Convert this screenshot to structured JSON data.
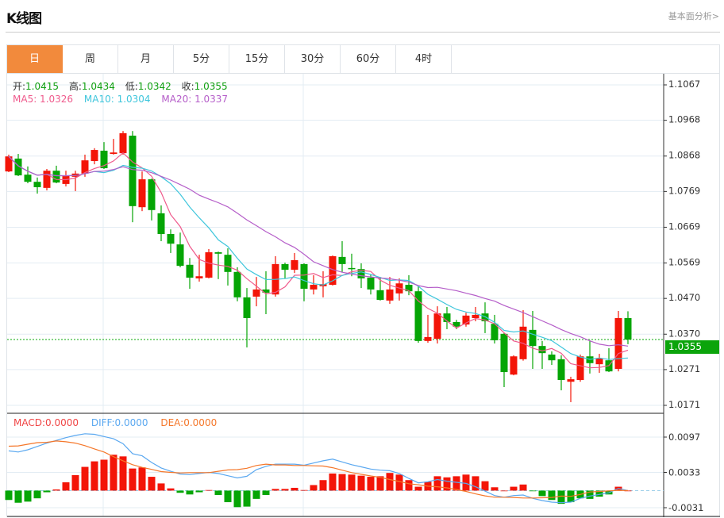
{
  "header": {
    "title": "K线图",
    "more_link": "基本面分析>"
  },
  "tabs": [
    {
      "label": "日",
      "active": true
    },
    {
      "label": "周"
    },
    {
      "label": "月"
    },
    {
      "label": "5分"
    },
    {
      "label": "15分"
    },
    {
      "label": "30分"
    },
    {
      "label": "60分"
    },
    {
      "label": "4时"
    }
  ],
  "ohlc": {
    "open_label": "开:",
    "open": "1.0415",
    "high_label": "高:",
    "high": "1.0434",
    "low_label": "低:",
    "low": "1.0342",
    "close_label": "收:",
    "close": "1.0355"
  },
  "ma": {
    "ma5": "MA5: 1.0326",
    "ma10": "MA10: 1.0304",
    "ma20": "MA20: 1.0337"
  },
  "macd_legend": {
    "macd": "MACD:0.0000",
    "diff": "DIFF:0.0000",
    "dea": "DEA:0.0000"
  },
  "current_price": "1.0355",
  "colors": {
    "up": "#f31508",
    "down": "#05a505",
    "ma5": "#ef5a8c",
    "ma10": "#3fc6dc",
    "ma20": "#b55ec9",
    "diff": "#5aa8f0",
    "dea": "#f5772a",
    "tab_active": "#f28a3c"
  },
  "chart_data": [
    {
      "type": "candlestick",
      "price_axis": {
        "ticks": [
          "1.1067",
          "1.0968",
          "1.0868",
          "1.0769",
          "1.0669",
          "1.0569",
          "1.0470",
          "1.0370",
          "1.0271",
          "1.0171"
        ],
        "range": [
          1.0171,
          1.1067
        ]
      },
      "candles": [
        [
          1.0825,
          1.0872,
          1.0823,
          1.0867
        ],
        [
          1.0861,
          1.0874,
          1.0812,
          1.0814
        ],
        [
          1.0816,
          1.0839,
          1.0792,
          1.0796
        ],
        [
          1.0796,
          1.0808,
          1.0763,
          1.0781
        ],
        [
          1.0779,
          1.0832,
          1.0772,
          1.0827
        ],
        [
          1.0827,
          1.0841,
          1.0792,
          1.0794
        ],
        [
          1.079,
          1.0827,
          1.0783,
          1.0812
        ],
        [
          1.081,
          1.0827,
          1.077,
          1.0819
        ],
        [
          1.0819,
          1.0872,
          1.081,
          1.0856
        ],
        [
          1.0854,
          1.089,
          1.0845,
          1.0885
        ],
        [
          1.0883,
          1.0907,
          1.0832,
          1.0834
        ],
        [
          1.0874,
          1.0916,
          1.0872,
          1.0878
        ],
        [
          1.0876,
          1.0938,
          1.0872,
          1.0932
        ],
        [
          1.0925,
          1.0938,
          1.0683,
          1.0728
        ],
        [
          1.0725,
          1.0825,
          1.0714,
          1.0803
        ],
        [
          1.0803,
          1.0805,
          1.0688,
          1.0717
        ],
        [
          1.0708,
          1.073,
          1.063,
          1.065
        ],
        [
          1.065,
          1.0663,
          1.0597,
          1.0623
        ],
        [
          1.0621,
          1.0654,
          1.0557,
          1.0561
        ],
        [
          1.0564,
          1.0583,
          1.0497,
          1.0528
        ],
        [
          1.0526,
          1.0592,
          1.0517,
          1.0532
        ],
        [
          1.0528,
          1.0608,
          1.0526,
          1.0599
        ],
        [
          1.0599,
          1.0601,
          1.0524,
          1.0595
        ],
        [
          1.0592,
          1.061,
          1.0506,
          1.0544
        ],
        [
          1.0544,
          1.0557,
          1.0462,
          1.0473
        ],
        [
          1.0473,
          1.0499,
          1.0333,
          1.0415
        ],
        [
          1.0475,
          1.053,
          1.0448,
          1.0495
        ],
        [
          1.0495,
          1.0546,
          1.0426,
          1.0486
        ],
        [
          1.0481,
          1.0588,
          1.0475,
          1.0566
        ],
        [
          1.0566,
          1.057,
          1.0526,
          1.055
        ],
        [
          1.055,
          1.0597,
          1.0541,
          1.0577
        ],
        [
          1.0566,
          1.0568,
          1.0462,
          1.0497
        ],
        [
          1.0495,
          1.0535,
          1.0481,
          1.0508
        ],
        [
          1.0504,
          1.0546,
          1.0473,
          1.051
        ],
        [
          1.0508,
          1.059,
          1.0506,
          1.0588
        ],
        [
          1.0586,
          1.063,
          1.0544,
          1.0566
        ],
        [
          1.0555,
          1.0595,
          1.0532,
          1.0552
        ],
        [
          1.0552,
          1.0568,
          1.0499,
          1.0526
        ],
        [
          1.0528,
          1.0537,
          1.0481,
          1.0495
        ],
        [
          1.0493,
          1.053,
          1.0464,
          1.0466
        ],
        [
          1.0464,
          1.053,
          1.0455,
          1.0495
        ],
        [
          1.0484,
          1.0526,
          1.0464,
          1.0512
        ],
        [
          1.0508,
          1.0535,
          1.0479,
          1.049
        ],
        [
          1.049,
          1.0504,
          1.0346,
          1.0351
        ],
        [
          1.0351,
          1.0424,
          1.0346,
          1.0362
        ],
        [
          1.0357,
          1.0448,
          1.0344,
          1.0428
        ],
        [
          1.0428,
          1.0446,
          1.0384,
          1.0404
        ],
        [
          1.0404,
          1.041,
          1.0384,
          1.0391
        ],
        [
          1.0397,
          1.043,
          1.0391,
          1.0422
        ],
        [
          1.0415,
          1.0446,
          1.0406,
          1.0424
        ],
        [
          1.0428,
          1.0459,
          1.0373,
          1.0406
        ],
        [
          1.0399,
          1.0424,
          1.0344,
          1.0353
        ],
        [
          1.0371,
          1.0373,
          1.0222,
          1.0264
        ],
        [
          1.0257,
          1.0311,
          1.0255,
          1.0308
        ],
        [
          1.03,
          1.0437,
          1.0296,
          1.0391
        ],
        [
          1.0382,
          1.0435,
          1.0273,
          1.0337
        ],
        [
          1.0337,
          1.0351,
          1.0273,
          1.0317
        ],
        [
          1.0313,
          1.0322,
          1.0284,
          1.0297
        ],
        [
          1.03,
          1.0311,
          1.0213,
          1.0242
        ],
        [
          1.0237,
          1.0251,
          1.018,
          1.0244
        ],
        [
          1.0242,
          1.0313,
          1.0237,
          1.0308
        ],
        [
          1.0308,
          1.0353,
          1.026,
          1.0289
        ],
        [
          1.0286,
          1.0315,
          1.0262,
          1.0302
        ],
        [
          1.0297,
          1.0331,
          1.0264,
          1.0266
        ],
        [
          1.0273,
          1.0435,
          1.0266,
          1.0415
        ],
        [
          1.0415,
          1.0434,
          1.0342,
          1.0355
        ]
      ],
      "moving_averages": [
        5,
        10,
        20
      ]
    },
    {
      "type": "bar",
      "name": "MACD",
      "axis": {
        "ticks": [
          "0.0097",
          "0.0033",
          "-0.0031"
        ],
        "range": [
          -0.0031,
          0.0097
        ]
      },
      "macd": [
        -0.0017,
        -0.0022,
        -0.002,
        -0.0014,
        -0.0003,
        0.0002,
        0.0015,
        0.0028,
        0.0043,
        0.0053,
        0.0056,
        0.0065,
        0.0062,
        0.004,
        0.0042,
        0.0025,
        0.0013,
        0.0004,
        -0.0004,
        -0.0007,
        -0.0003,
        0.0001,
        -0.0008,
        -0.0021,
        -0.003,
        -0.0029,
        -0.0015,
        -0.0008,
        0.0003,
        0.0003,
        0.0005,
        0.0001,
        0.001,
        0.0019,
        0.0031,
        0.003,
        0.0029,
        0.0027,
        0.0025,
        0.0026,
        0.0032,
        0.0029,
        0.0019,
        0.0007,
        0.0016,
        0.0026,
        0.0024,
        0.0026,
        0.0029,
        0.0026,
        0.0017,
        0.0006,
        0.0,
        0.0007,
        0.0011,
        -0.0001,
        -0.001,
        -0.0017,
        -0.0024,
        -0.0021,
        -0.0014,
        -0.0015,
        -0.0011,
        -0.0007,
        0.0007,
        0.0
      ],
      "diff": [
        0.0072,
        0.007,
        0.0074,
        0.008,
        0.0086,
        0.0091,
        0.0096,
        0.01,
        0.0103,
        0.0102,
        0.0098,
        0.0094,
        0.0085,
        0.0067,
        0.0063,
        0.0051,
        0.0041,
        0.0035,
        0.003,
        0.0029,
        0.0031,
        0.0033,
        0.0031,
        0.0027,
        0.0023,
        0.0026,
        0.0038,
        0.0044,
        0.0048,
        0.0048,
        0.0048,
        0.0046,
        0.005,
        0.0054,
        0.0057,
        0.0052,
        0.0047,
        0.0043,
        0.0039,
        0.0037,
        0.0036,
        0.0031,
        0.0022,
        0.0014,
        0.0016,
        0.002,
        0.0017,
        0.0015,
        0.0013,
        0.0007,
        -0.0001,
        -0.0009,
        -0.0012,
        -0.0009,
        -0.0008,
        -0.0014,
        -0.0018,
        -0.0021,
        -0.0022,
        -0.0021,
        -0.0014,
        -0.001,
        -0.0007,
        -0.0004,
        0.0004,
        0.0
      ]
    }
  ]
}
